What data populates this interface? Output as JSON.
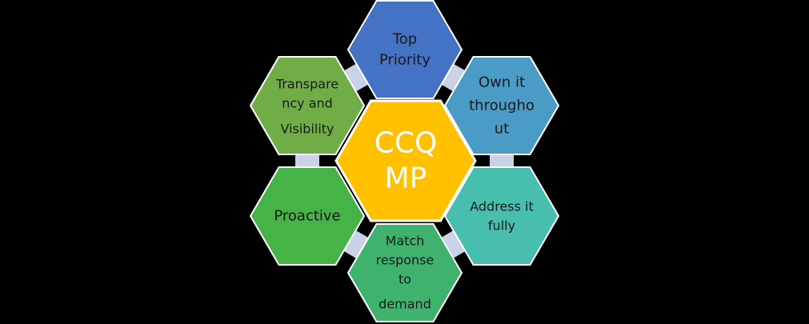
{
  "diagram": {
    "center": {
      "lines": [
        "CCQ",
        "MP"
      ],
      "color": "#FFC000"
    },
    "petals": [
      {
        "id": "top-priority",
        "lines": [
          "Top",
          "Priority"
        ],
        "color": "#4472C4"
      },
      {
        "id": "own-it-throughout",
        "lines": [
          "Own it",
          "througho",
          "ut"
        ],
        "color": "#4A9CC6"
      },
      {
        "id": "address-it-fully",
        "lines": [
          "Address it",
          "fully"
        ],
        "color": "#48BFAE"
      },
      {
        "id": "match-response-to-demand",
        "lines": [
          "Match",
          "response",
          "to",
          "demand"
        ],
        "color": "#3FB36E"
      },
      {
        "id": "proactive",
        "lines": [
          "Proactive"
        ],
        "color": "#46B346"
      },
      {
        "id": "transparency-and-visibility",
        "lines": [
          "Transpare",
          "ncy and",
          "Visibility"
        ],
        "color": "#70AD47"
      }
    ],
    "connector_color": "#C9D2E6",
    "background": "#000000"
  }
}
